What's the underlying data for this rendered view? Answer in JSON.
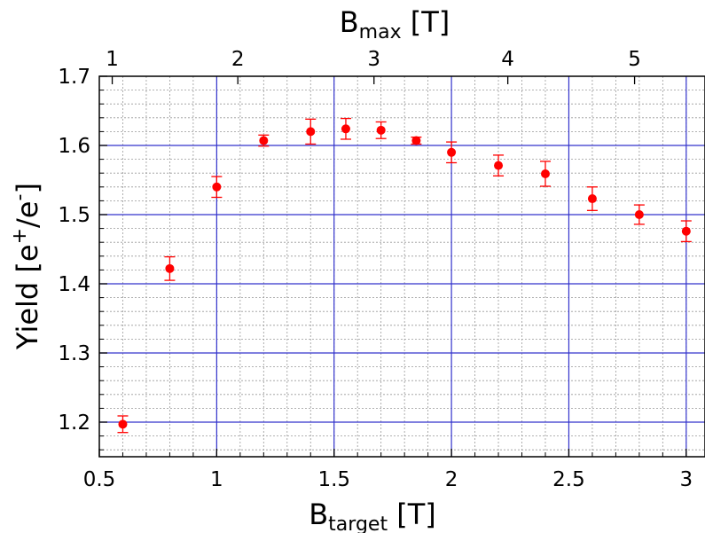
{
  "chart_data": {
    "type": "scatter",
    "x": [
      0.6,
      0.8,
      1.0,
      1.2,
      1.4,
      1.55,
      1.7,
      1.85,
      2.0,
      2.2,
      2.4,
      2.6,
      2.8,
      3.0
    ],
    "y": [
      1.197,
      1.422,
      1.54,
      1.607,
      1.62,
      1.624,
      1.622,
      1.607,
      1.59,
      1.571,
      1.559,
      1.523,
      1.5,
      1.476
    ],
    "y_err": [
      0.012,
      0.017,
      0.015,
      0.008,
      0.018,
      0.015,
      0.012,
      0.005,
      0.015,
      0.015,
      0.018,
      0.017,
      0.014,
      0.015
    ],
    "xlim": [
      0.5,
      3.08
    ],
    "ylim": [
      1.15,
      1.7
    ],
    "x_ticks": [
      "0.5",
      "1",
      "1.5",
      "2",
      "2.5",
      "3"
    ],
    "y_ticks": [
      "1.2",
      "1.3",
      "1.4",
      "1.5",
      "1.6",
      "1.7"
    ],
    "top_axis": {
      "label_main": "B",
      "label_sub": "max",
      "label_unit": " [T]",
      "ticks": [
        {
          "label": "1",
          "x_pos": 0.555
        },
        {
          "label": "2",
          "x_pos": 1.09
        },
        {
          "label": "3",
          "x_pos": 1.67
        },
        {
          "label": "4",
          "x_pos": 2.24
        },
        {
          "label": "5",
          "x_pos": 2.78
        }
      ]
    },
    "xlabel_main": "B",
    "xlabel_sub": "target",
    "xlabel_unit": " [T]",
    "ylabel_main": "Yield [e",
    "ylabel_sup1": "+",
    "ylabel_mid": "/e",
    "ylabel_sup2": "-",
    "ylabel_end": "]",
    "grid": true,
    "colors": {
      "marker": "#ff0000",
      "major_grid": "#3333cc",
      "minor_grid": "#999999"
    }
  }
}
